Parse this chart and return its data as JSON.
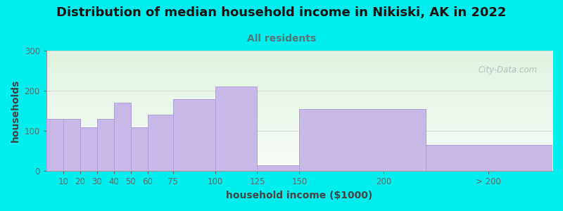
{
  "title": "Distribution of median household income in Nikiski, AK in 2022",
  "subtitle": "All residents",
  "xlabel": "household income ($1000)",
  "ylabel": "households",
  "bar_left_edges": [
    0,
    10,
    20,
    30,
    40,
    50,
    60,
    75,
    100,
    125,
    150,
    225
  ],
  "bar_right_edges": [
    10,
    20,
    30,
    40,
    50,
    60,
    75,
    100,
    125,
    150,
    225,
    300
  ],
  "bar_values": [
    130,
    130,
    110,
    130,
    170,
    110,
    140,
    180,
    210,
    15,
    155,
    65
  ],
  "bar_tick_labels": [
    "10",
    "20",
    "30",
    "40",
    "50",
    "60",
    "75",
    "100",
    "125",
    "150",
    "200",
    "> 200"
  ],
  "bar_color": "#c8b8e8",
  "bar_edgecolor": "#b0a0d8",
  "bg_outer": "#00eeee",
  "ylim": [
    0,
    300
  ],
  "yticks": [
    0,
    100,
    200,
    300
  ],
  "xlim": [
    0,
    300
  ],
  "title_fontsize": 13,
  "subtitle_fontsize": 10,
  "subtitle_color": "#557777",
  "axis_label_fontsize": 10,
  "watermark_text": "City-Data.com",
  "watermark_color": "#aabbbb",
  "tick_label_positions": [
    10,
    20,
    30,
    40,
    50,
    60,
    75,
    100,
    125,
    150,
    200,
    262
  ]
}
